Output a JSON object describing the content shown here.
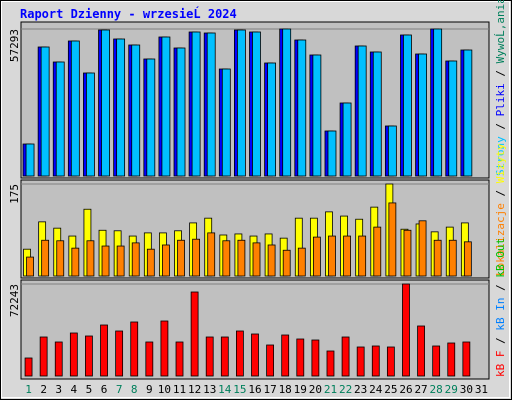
{
  "chart_data": [
    {
      "type": "bar",
      "title": "Raport Dzienny -  wrzesieĹ  2024",
      "legend_separator": " / ",
      "ylim": [
        0,
        57293
      ],
      "yticks": [
        57293
      ],
      "series": [
        {
          "name": "Strony",
          "color": "#00c0ff",
          "values": [
            12472,
            50278,
            44432,
            52616,
            40144,
            56904,
            53396,
            51057,
            45601,
            54175,
            49888,
            56124,
            55734,
            41703,
            56904,
            56124,
            44042,
            57293,
            53006,
            47160,
            17539,
            28452,
            50668,
            48329,
            19488,
            54955,
            47550,
            57293,
            44821,
            49109,
            null
          ]
        },
        {
          "name": "Pliki",
          "color": "#0000ff",
          "values": [
            12472,
            50278,
            44432,
            52616,
            40144,
            56904,
            53396,
            51057,
            45601,
            54175,
            49888,
            56124,
            55734,
            41703,
            56904,
            56124,
            44042,
            57293,
            53006,
            47160,
            17539,
            28452,
            50668,
            48329,
            19488,
            54955,
            47550,
            57293,
            44821,
            49109,
            null
          ]
        },
        {
          "name": "WywoĹ‚ania",
          "color": "#00805c"
        }
      ]
    },
    {
      "type": "bar",
      "legend_separator": " / ",
      "ylim": [
        0,
        175
      ],
      "yticks": [
        175
      ],
      "series": [
        {
          "name": "Lokalizacje",
          "color": "#ff8000",
          "values": [
            36,
            68,
            67,
            53,
            67,
            57,
            57,
            63,
            51,
            59,
            68,
            70,
            82,
            67,
            68,
            63,
            59,
            49,
            53,
            74,
            76,
            76,
            76,
            93,
            139,
            87,
            105,
            68,
            68,
            65,
            null
          ]
        },
        {
          "name": "Wizyty",
          "color": "#ffff00",
          "values": [
            51,
            103,
            91,
            76,
            127,
            87,
            86,
            76,
            82,
            82,
            86,
            101,
            110,
            78,
            80,
            76,
            80,
            72,
            110,
            110,
            122,
            114,
            108,
            131,
            175,
            89,
            99,
            84,
            93,
            101,
            null
          ]
        }
      ]
    },
    {
      "type": "bar",
      "legend_separator": " / ",
      "ylim": [
        0,
        72243
      ],
      "yticks": [
        72243
      ],
      "categories": [
        "1",
        "2",
        "3",
        "4",
        "5",
        "6",
        "7",
        "8",
        "9",
        "10",
        "11",
        "12",
        "13",
        "14",
        "15",
        "16",
        "17",
        "18",
        "19",
        "20",
        "21",
        "22",
        "23",
        "24",
        "25",
        "26",
        "27",
        "28",
        "29",
        "30",
        "31"
      ],
      "highlight": [
        0,
        6,
        7,
        13,
        14,
        20,
        21,
        27,
        28
      ],
      "highlight_color": "#00805c",
      "series": [
        {
          "name": "kB F",
          "color": "#ff0000",
          "values": [
            14135,
            30625,
            26699,
            33766,
            31410,
            40048,
            35336,
            42404,
            26699,
            43189,
            26699,
            65961,
            30625,
            30625,
            35336,
            32981,
            24343,
            32195,
            29054,
            28269,
            19631,
            30625,
            22772,
            23558,
            22772,
            72243,
            39263,
            23558,
            25913,
            26699,
            null
          ]
        },
        {
          "name": "kB In",
          "color": "#0080ff"
        },
        {
          "name": "kB Out",
          "color": "#00c000"
        }
      ]
    }
  ]
}
